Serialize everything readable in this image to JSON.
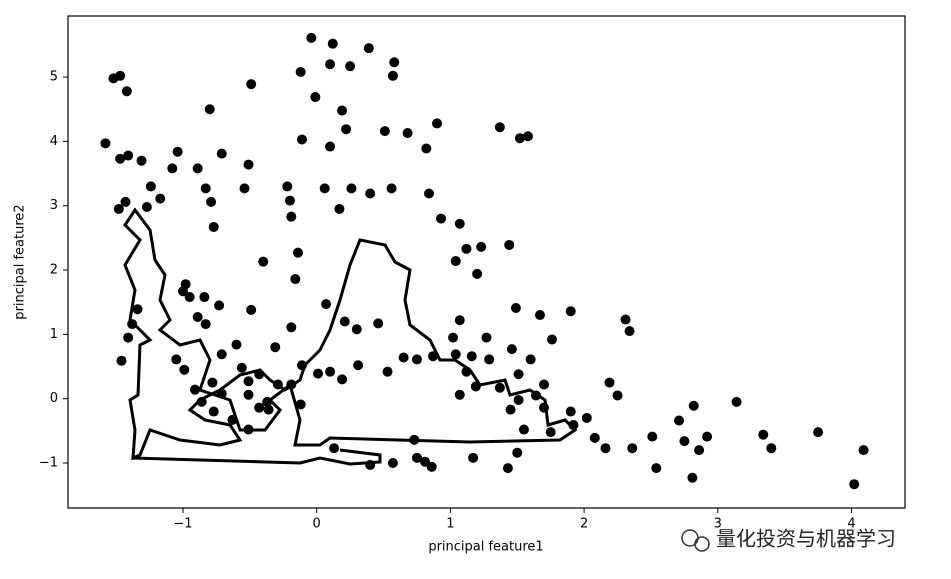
{
  "chart_data": {
    "type": "scatter",
    "xlabel": "principal feature1",
    "ylabel": "principal feature2",
    "watermark": "量化投资与机器学习",
    "color": "#000000",
    "xlim": [
      -1.86,
      4.4
    ],
    "ylim": [
      -1.7,
      5.95
    ],
    "xticks": [
      {
        "value": -1,
        "label": "−1"
      },
      0,
      1,
      2,
      3,
      4
    ],
    "yticks": [
      {
        "value": -1,
        "label": "−1"
      },
      0,
      1,
      2,
      3,
      4,
      5
    ],
    "x": [
      -1.58,
      -1.52,
      -1.47,
      -1.42,
      -0.04,
      0.12,
      0.39,
      0.25,
      0.1,
      -0.12,
      0.58,
      -0.49,
      -0.8,
      -0.01,
      0.19,
      0.57,
      0.9,
      1.37,
      1.52,
      1.58,
      0.51,
      0.68,
      0.82,
      -0.11,
      0.1,
      0.22,
      -1.47,
      -1.41,
      -1.31,
      -1.04,
      -1.08,
      -0.89,
      -0.71,
      -0.51,
      -0.54,
      -0.79,
      -0.77,
      -0.83,
      -1.24,
      -1.17,
      -1.27,
      -1.43,
      -1.48,
      -0.22,
      -0.2,
      -0.19,
      0.06,
      0.17,
      0.26,
      0.4,
      0.56,
      0.84,
      0.93,
      1.07,
      1.12,
      1.23,
      1.44,
      1.2,
      1.04,
      -0.4,
      -0.14,
      -0.16,
      -0.98,
      -1.0,
      -0.84,
      -0.73,
      -0.49,
      -0.19,
      0.07,
      0.21,
      0.3,
      0.46,
      0.75,
      1.02,
      1.07,
      1.27,
      1.49,
      1.67,
      1.9,
      1.76,
      1.46,
      1.6,
      1.7,
      1.64,
      1.51,
      2.19,
      2.25,
      2.31,
      2.34,
      2.02,
      2.08,
      2.16,
      2.36,
      2.51,
      2.54,
      2.71,
      2.75,
      2.82,
      2.86,
      2.92,
      2.81,
      3.14,
      3.34,
      3.4,
      3.75,
      4.09,
      4.02,
      0.73,
      0.81,
      0.86,
      1.17,
      1.43,
      1.5,
      0.4,
      0.57,
      0.75,
      0.13,
      -1.46,
      -0.31,
      -0.6,
      -0.71,
      -0.56,
      -0.51,
      -0.43,
      -0.29,
      -0.51,
      -0.43,
      -0.37,
      -0.63,
      -0.51,
      -0.11,
      0.01,
      -0.19,
      -0.12,
      -0.36,
      -0.78,
      -0.71,
      0.1,
      0.19,
      0.31,
      0.53,
      0.65,
      0.87,
      1.04,
      1.16,
      1.29,
      1.12,
      1.19,
      1.07,
      1.37,
      1.51,
      1.45,
      1.7,
      1.9,
      1.92,
      1.75,
      1.55,
      -0.95,
      -0.89,
      -0.83,
      -1.34,
      -1.38,
      -1.41,
      -1.05,
      -0.99,
      -0.91,
      -0.86,
      -0.77
    ],
    "y": [
      3.97,
      4.98,
      5.02,
      4.78,
      5.61,
      5.52,
      5.45,
      5.17,
      5.2,
      5.08,
      5.23,
      4.89,
      4.5,
      4.69,
      4.48,
      5.02,
      4.28,
      4.22,
      4.05,
      4.08,
      4.16,
      4.13,
      3.89,
      4.03,
      3.92,
      4.19,
      3.73,
      3.78,
      3.7,
      3.84,
      3.58,
      3.58,
      3.81,
      3.64,
      3.27,
      3.06,
      2.67,
      3.27,
      3.3,
      3.11,
      2.98,
      3.06,
      2.95,
      3.3,
      3.08,
      2.83,
      3.27,
      2.95,
      3.27,
      3.19,
      3.27,
      3.19,
      2.8,
      2.72,
      2.33,
      2.36,
      2.39,
      1.94,
      2.14,
      2.13,
      2.27,
      1.86,
      1.78,
      1.67,
      1.58,
      1.45,
      1.38,
      1.11,
      1.47,
      1.2,
      1.08,
      1.17,
      0.61,
      0.95,
      1.22,
      0.95,
      1.41,
      1.3,
      1.36,
      0.92,
      0.77,
      0.61,
      0.22,
      0.05,
      0.38,
      0.25,
      0.05,
      1.23,
      1.05,
      -0.3,
      -0.61,
      -0.77,
      -0.77,
      -0.59,
      -1.08,
      -0.34,
      -0.66,
      -0.11,
      -0.8,
      -0.59,
      -1.23,
      -0.05,
      -0.56,
      -0.77,
      -0.52,
      -0.8,
      -1.33,
      -0.64,
      -0.98,
      -1.06,
      -0.92,
      -1.08,
      -0.84,
      -1.03,
      -1.0,
      -0.92,
      -0.77,
      0.59,
      0.8,
      0.84,
      0.69,
      0.48,
      0.27,
      0.38,
      0.22,
      0.06,
      -0.14,
      -0.05,
      -0.33,
      -0.48,
      0.52,
      0.39,
      0.22,
      -0.09,
      -0.17,
      0.25,
      0.08,
      0.42,
      0.3,
      0.52,
      0.42,
      0.64,
      0.66,
      0.69,
      0.66,
      0.61,
      0.42,
      0.19,
      0.06,
      0.17,
      -0.02,
      -0.17,
      -0.14,
      -0.2,
      -0.41,
      -0.52,
      -0.48,
      1.58,
      1.27,
      1.16,
      1.39,
      1.16,
      0.95,
      0.61,
      0.45,
      0.14,
      -0.05,
      -0.2
    ]
  }
}
